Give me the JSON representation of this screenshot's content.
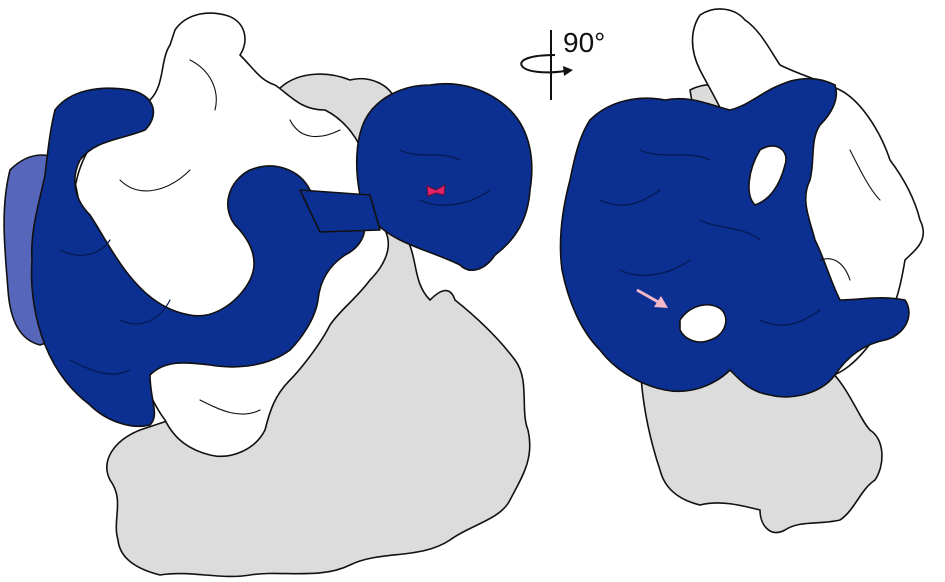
{
  "annotation": {
    "rotation_label": "90°"
  }
}
